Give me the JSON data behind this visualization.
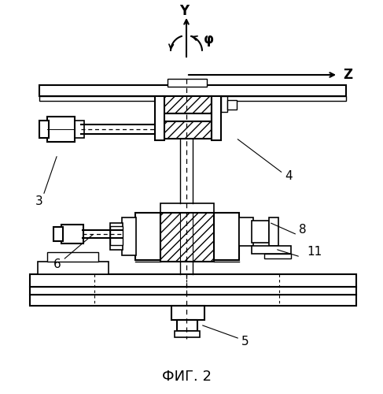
{
  "bg_color": "#ffffff",
  "fig_label": "ФИГ. 2"
}
